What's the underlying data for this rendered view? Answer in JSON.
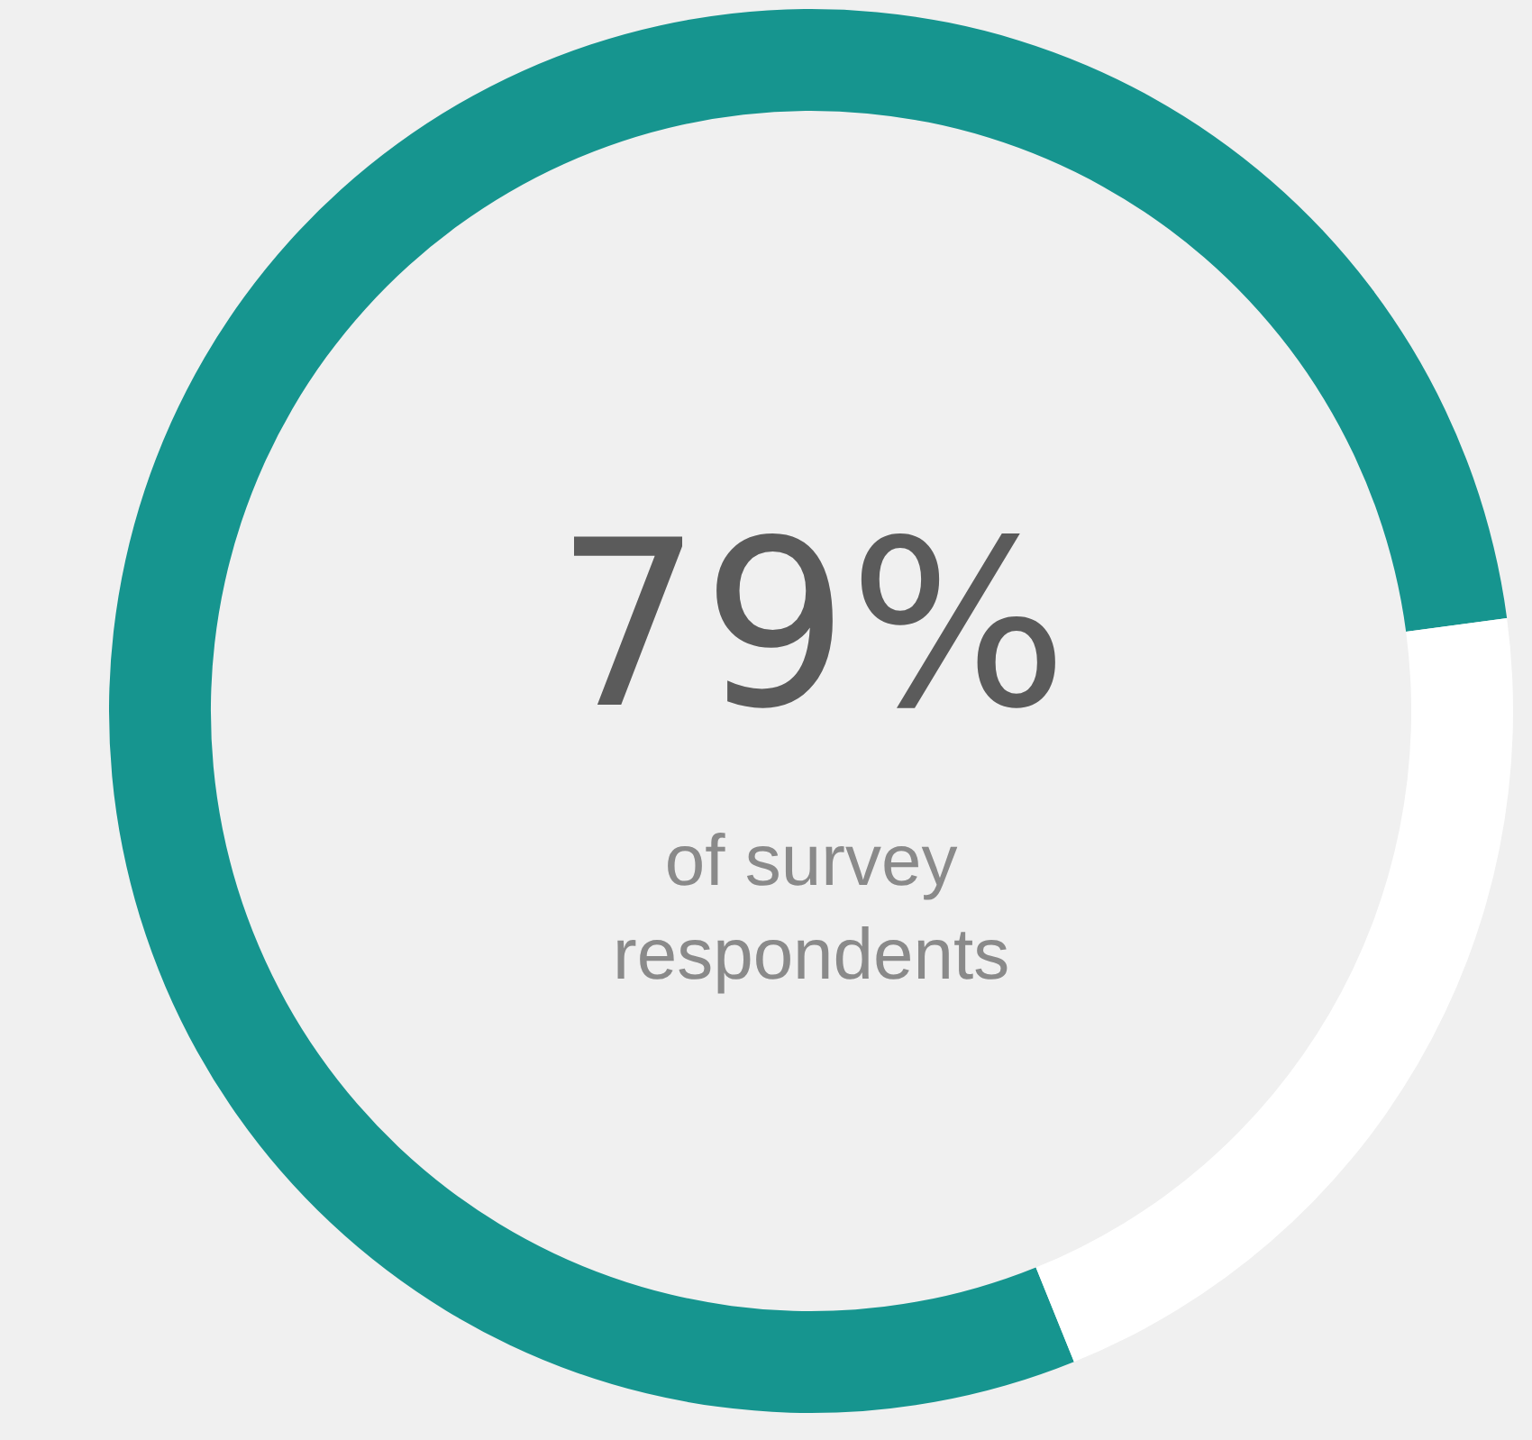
{
  "chart_data": {
    "type": "donut",
    "categories": [
      null,
      null
    ],
    "values": [
      79,
      21
    ],
    "colors": [
      "#16958f",
      "#ffffff"
    ],
    "value_labels": [
      "79%",
      null
    ],
    "annotations": [
      "of survey\nrespondents"
    ],
    "legend": false
  }
}
